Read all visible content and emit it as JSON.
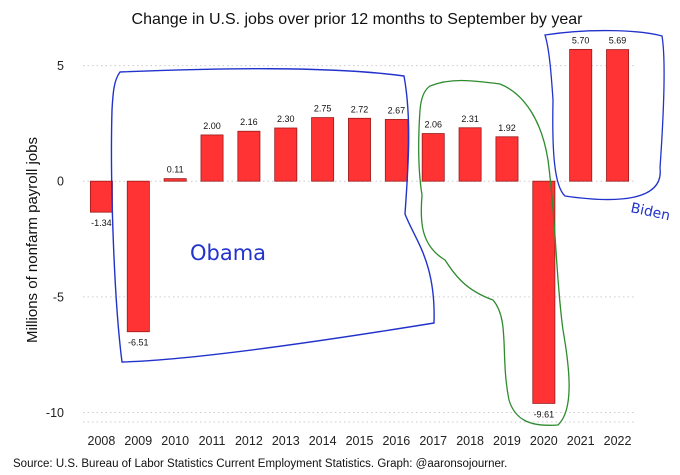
{
  "chart_data": {
    "type": "bar",
    "title": "Change in U.S. jobs over prior 12 months to September by year",
    "ylabel": "Millions of nonfarm payroll jobs",
    "xlabel": "",
    "categories": [
      "2008",
      "2009",
      "2010",
      "2011",
      "2012",
      "2013",
      "2014",
      "2015",
      "2016",
      "2017",
      "2018",
      "2019",
      "2020",
      "2021",
      "2022"
    ],
    "values": [
      -1.34,
      -6.51,
      0.11,
      2.0,
      2.16,
      2.3,
      2.75,
      2.72,
      2.67,
      2.06,
      2.31,
      1.92,
      -9.61,
      5.7,
      5.69
    ],
    "value_labels": [
      "-1.34",
      "-6.51",
      "0.11",
      "2.00",
      "2.16",
      "2.30",
      "2.75",
      "2.72",
      "2.67",
      "2.06",
      "2.31",
      "1.92",
      "-9.61",
      "5.70",
      "5.69"
    ],
    "ylim": [
      -10.5,
      5.5
    ],
    "yticks": [
      5,
      0,
      -5,
      -10
    ],
    "ytick_labels": [
      "5",
      "0",
      "-5",
      "-10"
    ],
    "grid": true,
    "source": "Source: U.S. Bureau of Labor Statistics Current Employment Statistics. Graph: @aaronsojourner.",
    "colors": {
      "bar_fill": "#ff3333",
      "bar_stroke": "#9a1a1a",
      "grid": "#cccccc",
      "annotation_blue": "#2233cc",
      "annotation_green": "#2e8b2e"
    }
  },
  "annotations": [
    {
      "text": "Obama",
      "years": [
        "2009",
        "2016"
      ]
    },
    {
      "text": "",
      "years": [
        "2017",
        "2020"
      ]
    },
    {
      "text": "Biden",
      "years": [
        "2021",
        "2022"
      ]
    }
  ]
}
